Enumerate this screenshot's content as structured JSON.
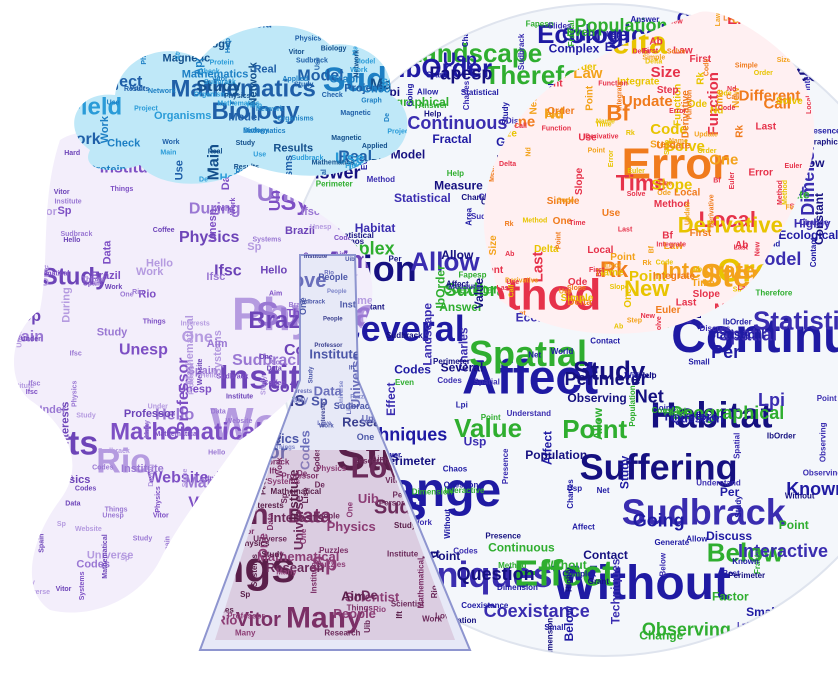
{
  "colors": {
    "cloud": "#5fc3ea",
    "cloud_text": "#1f5fa8",
    "scientist": "#a98ad6",
    "scientist_text": "#7d4fc4",
    "globe_bg": "#ffffff",
    "globe_text": "#1f1aa3",
    "green": "#2fae2f",
    "fire_red": "#e6324a",
    "fire_orange": "#f3a21b",
    "fire_yellow": "#ffe45a",
    "flask": "#7f86c9",
    "flask_text": "#5a3a8a",
    "flask_liquid": "#7b2f66"
  },
  "words": {
    "cloud": [
      "De",
      "Sudbrack",
      "Biology",
      "Network",
      "Field",
      "Mathematics",
      "Vitor",
      "Physics",
      "Main",
      "Model",
      "Project",
      "Magnetic",
      "Work",
      "Study",
      "Real",
      "Use",
      "Check",
      "Results",
      "Graph",
      "Applied",
      "Protein",
      "Organisms",
      "Help"
    ],
    "scientist": [
      "Work",
      "Physics",
      "Vitor",
      "Sudbrack",
      "Many",
      "Institute",
      "Interests",
      "Rio",
      "Systems",
      "Universe",
      "Mathematical",
      "Brazil",
      "Data",
      "Study",
      "Things",
      "Aim",
      "Sp",
      "Unesp",
      "Ifsc",
      "Coffee",
      "Hello",
      "During",
      "Spain",
      "Same",
      "Professor",
      "Website",
      "One",
      "Hard",
      "Under",
      "Codes"
    ],
    "flask": [
      "Study",
      "Things",
      "Many",
      "Love",
      "Person",
      "Systems",
      "Vitor",
      "Data",
      "Sp",
      "Work",
      "Sudbrack",
      "Physics",
      "Interests",
      "Rio",
      "Codes",
      "Universe",
      "Scientist",
      "Institute",
      "Aim",
      "Research",
      "Mathematical",
      "Uib",
      "Ift",
      "De",
      "One",
      "People",
      "Lise",
      "Professor",
      "Puzzles"
    ],
    "globe": [
      "Without",
      "Change",
      "Help",
      "Continuous",
      "Affect",
      "Codes",
      "Spatial",
      "Method",
      "Population",
      "Habitat",
      "Sudbrack",
      "Techniques",
      "Fractal",
      "Several",
      "Effect",
      "Suffering",
      "Highly",
      "Landscape",
      "Ecological",
      "Statistical",
      "Therefore",
      "Measure",
      "Grant",
      "Point",
      "Study",
      "Value",
      "Allow",
      "Best",
      "Below",
      "Even",
      "Discuss",
      "Constant",
      "IbOrder",
      "Area",
      "Going",
      "Model",
      "Work",
      "Question",
      "Per",
      "Generate",
      "Slides",
      "Chaos",
      "World",
      "Net",
      "Understand",
      "Dimension",
      "Perimeter",
      "Known",
      "Factor",
      "Interactive",
      "Observing",
      "Fapesp",
      "Usp",
      "Complex",
      "Presence",
      "Coexistance",
      "Geographical",
      "Answer",
      "Small",
      "Charles",
      "Lpi",
      "Contact"
    ],
    "fire": [
      "Method",
      "Error",
      "Delta",
      "Order",
      "Step",
      "Ode",
      "Rk",
      "Integrate",
      "Local",
      "Time",
      "Euler",
      "New",
      "Derivative",
      "Bf",
      "Call",
      "Use",
      "Size",
      "Slope",
      "Point",
      "Name",
      "Nd",
      "Law",
      "One",
      "Update",
      "Ab",
      "Simple",
      "First",
      "Last",
      "Different",
      "Solve",
      "Code",
      "Function"
    ]
  }
}
